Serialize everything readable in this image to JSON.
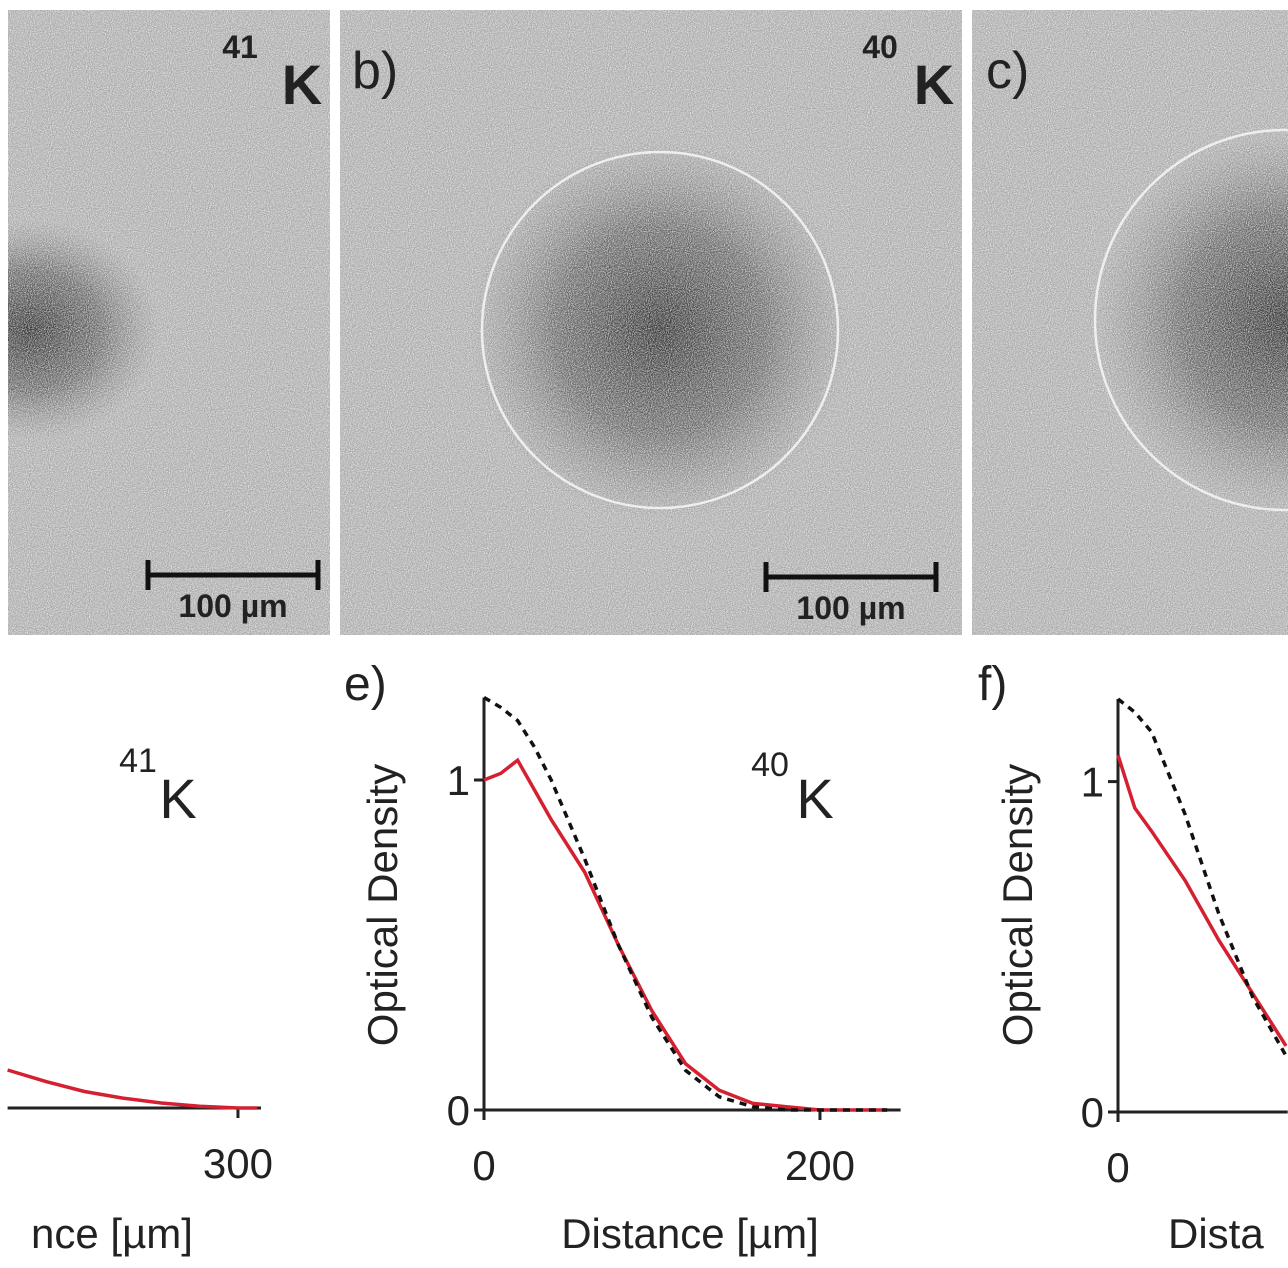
{
  "figure": {
    "panels": [
      {
        "isotope_mass": "41",
        "isotope_symbol": "K",
        "scale_bar": "100 µm"
      },
      {
        "label": "b)",
        "isotope_mass": "40",
        "isotope_symbol": "K",
        "scale_bar": "100 µm"
      },
      {
        "label": "c)"
      }
    ]
  },
  "chart_data": [
    {
      "type": "line",
      "isotope_mass": "41",
      "isotope_symbol": "K",
      "x_label": "nce [µm]",
      "x": [
        120,
        150,
        180,
        210,
        240,
        270,
        300,
        315
      ],
      "series": [
        {
          "color": "#d42030",
          "values": [
            0.115,
            0.08,
            0.05,
            0.03,
            0.015,
            0.005,
            0,
            0
          ]
        }
      ],
      "xlim": [
        120,
        318
      ],
      "xticks": [
        300
      ],
      "ylim": [
        0,
        1.25
      ]
    },
    {
      "type": "line",
      "label": "e)",
      "isotope_mass": "40",
      "isotope_symbol": "K",
      "x_label": "Distance [µm]",
      "y_label": "Optical Density",
      "x": [
        0,
        10,
        20,
        30,
        40,
        60,
        80,
        100,
        120,
        140,
        160,
        180,
        200,
        240
      ],
      "series": [
        {
          "color": "#d42030",
          "values": [
            1.0,
            1.02,
            1.06,
            0.97,
            0.88,
            0.72,
            0.5,
            0.3,
            0.14,
            0.06,
            0.02,
            0.01,
            0,
            0
          ]
        },
        {
          "color": "#111111",
          "dashed": true,
          "values": [
            1.25,
            1.22,
            1.18,
            1.1,
            1.0,
            0.76,
            0.5,
            0.28,
            0.12,
            0.04,
            0.01,
            0,
            0,
            0
          ]
        }
      ],
      "xlim": [
        0,
        248
      ],
      "xticks": [
        0,
        200
      ],
      "ylim": [
        0,
        1.25
      ],
      "yticks": [
        0,
        1
      ]
    },
    {
      "type": "line",
      "label": "f)",
      "x_label": "Dista",
      "y_label": "Optical Density",
      "x": [
        0,
        10,
        20,
        40,
        60,
        80,
        100
      ],
      "series": [
        {
          "color": "#d42030",
          "values": [
            1.08,
            0.92,
            0.85,
            0.7,
            0.52,
            0.36,
            0.2
          ]
        },
        {
          "color": "#111111",
          "dashed": true,
          "values": [
            1.25,
            1.21,
            1.15,
            0.9,
            0.6,
            0.35,
            0.17
          ]
        }
      ],
      "xlim": [
        0,
        101
      ],
      "xticks": [
        0
      ],
      "ylim": [
        0,
        1.25
      ],
      "yticks": [
        0,
        1
      ]
    }
  ]
}
